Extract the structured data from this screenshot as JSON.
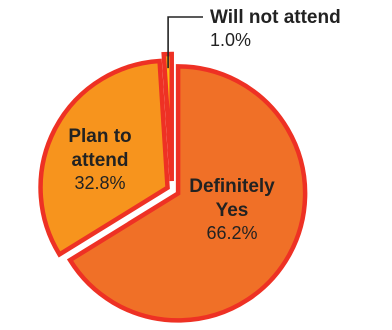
{
  "chart_data": {
    "type": "pie",
    "slices": [
      {
        "label_lines": [
          "Definitely",
          "Yes"
        ],
        "value": 66.2,
        "value_label": "66.2%",
        "color": "#f07027"
      },
      {
        "label_lines": [
          "Plan to",
          "attend"
        ],
        "value": 32.8,
        "value_label": "32.8%",
        "color": "#f7941d"
      },
      {
        "label_lines": [
          "Will not attend"
        ],
        "value": 1.0,
        "value_label": "1.0%",
        "color": "#fdb913"
      }
    ],
    "outline_color": "#ee3124",
    "start": "top, clockwise",
    "exploded": "all slices separated by gaps",
    "legend": "none (labels drawn on and beside the slices)"
  }
}
